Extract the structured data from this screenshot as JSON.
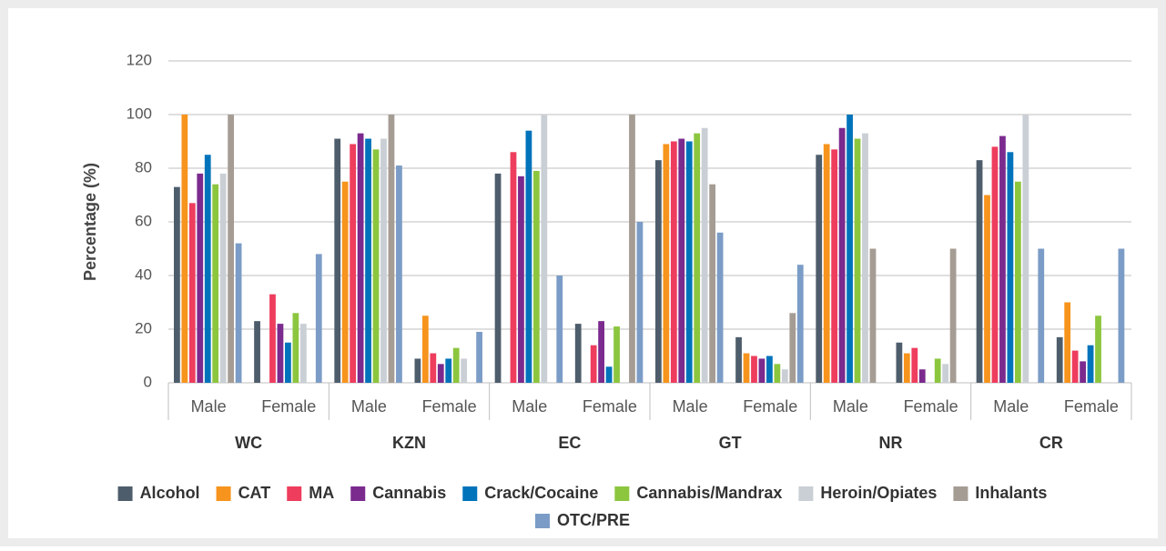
{
  "chart_data": {
    "type": "bar",
    "y_label": "Percentage (%)",
    "groups": [
      "WC",
      "KZN",
      "EC",
      "GT",
      "NR",
      "CR"
    ],
    "categories": [
      "Male",
      "Female",
      "Male",
      "Female",
      "Male",
      "Female",
      "Male",
      "Female",
      "Male",
      "Female",
      "Male",
      "Female"
    ],
    "ylim": [
      0,
      120
    ],
    "yticks": [
      0,
      20,
      40,
      60,
      80,
      100,
      120
    ],
    "grid": true,
    "legend": "bottom",
    "series": [
      {
        "name": "Alcohol",
        "color": "#4e5d6b",
        "values": [
          73,
          23,
          91,
          9,
          78,
          22,
          83,
          17,
          85,
          15,
          83,
          17
        ]
      },
      {
        "name": "CAT",
        "color": "#f7941d",
        "values": [
          100,
          null,
          75,
          25,
          null,
          null,
          89,
          11,
          89,
          11,
          70,
          30
        ]
      },
      {
        "name": "MA",
        "color": "#ee3d5d",
        "values": [
          67,
          33,
          89,
          11,
          86,
          14,
          90,
          10,
          87,
          13,
          88,
          12
        ]
      },
      {
        "name": "Cannabis",
        "color": "#7b2a8e",
        "values": [
          78,
          22,
          93,
          7,
          77,
          23,
          91,
          9,
          95,
          5,
          92,
          8
        ]
      },
      {
        "name": "Crack/Cocaine",
        "color": "#0073bb",
        "values": [
          85,
          15,
          91,
          9,
          94,
          6,
          90,
          10,
          100,
          null,
          86,
          14
        ]
      },
      {
        "name": "Cannabis/Mandrax",
        "color": "#8cc63f",
        "values": [
          74,
          26,
          87,
          13,
          79,
          21,
          93,
          7,
          91,
          9,
          75,
          25
        ]
      },
      {
        "name": "Heroin/Opiates",
        "color": "#c9cfd4",
        "values": [
          78,
          22,
          91,
          9,
          100,
          null,
          95,
          5,
          93,
          7,
          100,
          null
        ]
      },
      {
        "name": "Inhalants",
        "color": "#a59c94",
        "values": [
          100,
          null,
          100,
          null,
          null,
          100,
          74,
          26,
          50,
          50,
          null,
          null
        ]
      },
      {
        "name": "OTC/PRE",
        "color": "#7b9cc6",
        "values": [
          52,
          48,
          81,
          19,
          40,
          60,
          56,
          44,
          null,
          null,
          50,
          50
        ]
      }
    ]
  }
}
